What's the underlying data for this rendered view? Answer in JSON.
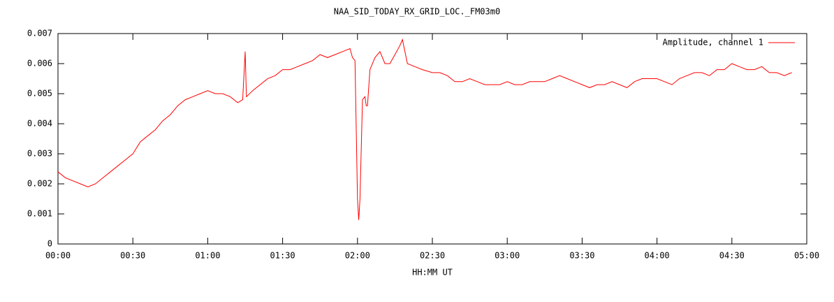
{
  "chart_data": {
    "type": "line",
    "title": "NAA_SID_TODAY_RX_GRID_LOC._FM03m0",
    "xlabel": "HH:MM UT",
    "x": [
      0,
      3,
      6,
      9,
      12,
      15,
      18,
      21,
      24,
      27,
      30,
      33,
      36,
      39,
      42,
      45,
      48,
      51,
      54,
      57,
      60,
      63,
      66,
      69,
      72,
      74,
      75,
      75.5,
      78,
      81,
      84,
      87,
      90,
      93,
      96,
      99,
      102,
      105,
      108,
      111,
      114,
      117,
      118,
      119,
      120,
      120.5,
      121,
      122,
      123,
      123.5,
      124,
      125,
      127,
      129,
      131,
      133,
      135,
      137,
      138,
      140,
      143,
      146,
      150,
      153,
      156,
      159,
      162,
      165,
      168,
      171,
      174,
      177,
      180,
      183,
      186,
      189,
      192,
      195,
      198,
      201,
      204,
      207,
      210,
      213,
      216,
      219,
      222,
      225,
      228,
      231,
      234,
      237,
      240,
      243,
      246,
      249,
      252,
      255,
      258,
      261,
      264,
      267,
      270,
      273,
      276,
      279,
      282,
      285,
      288,
      291,
      294
    ],
    "series": [
      {
        "name": "Amplitude, channel 1",
        "color": "#ff0000",
        "values": [
          0.0024,
          0.0022,
          0.0021,
          0.002,
          0.0019,
          0.002,
          0.0022,
          0.0024,
          0.0026,
          0.0028,
          0.003,
          0.0034,
          0.0036,
          0.0038,
          0.0041,
          0.0043,
          0.0046,
          0.0048,
          0.0049,
          0.005,
          0.0051,
          0.005,
          0.005,
          0.0049,
          0.0047,
          0.0048,
          0.0064,
          0.0049,
          0.0051,
          0.0053,
          0.0055,
          0.0056,
          0.0058,
          0.0058,
          0.0059,
          0.006,
          0.0061,
          0.0063,
          0.0062,
          0.0063,
          0.0064,
          0.0065,
          0.0062,
          0.0061,
          0.0015,
          0.0008,
          0.0015,
          0.0048,
          0.0049,
          0.0046,
          0.0046,
          0.0058,
          0.0062,
          0.0064,
          0.006,
          0.006,
          0.0063,
          0.0066,
          0.0068,
          0.006,
          0.0059,
          0.0058,
          0.0057,
          0.0057,
          0.0056,
          0.0054,
          0.0054,
          0.0055,
          0.0054,
          0.0053,
          0.0053,
          0.0053,
          0.0054,
          0.0053,
          0.0053,
          0.0054,
          0.0054,
          0.0054,
          0.0055,
          0.0056,
          0.0055,
          0.0054,
          0.0053,
          0.0052,
          0.0053,
          0.0053,
          0.0054,
          0.0053,
          0.0052,
          0.0054,
          0.0055,
          0.0055,
          0.0055,
          0.0054,
          0.0053,
          0.0055,
          0.0056,
          0.0057,
          0.0057,
          0.0056,
          0.0058,
          0.0058,
          0.006,
          0.0059,
          0.0058,
          0.0058,
          0.0059,
          0.0057,
          0.0057,
          0.0056,
          0.0057
        ]
      }
    ],
    "xlim": [
      0,
      300
    ],
    "xticks": [
      {
        "value": 0,
        "label": "00:00"
      },
      {
        "value": 30,
        "label": "00:30"
      },
      {
        "value": 60,
        "label": "01:00"
      },
      {
        "value": 90,
        "label": "01:30"
      },
      {
        "value": 120,
        "label": "02:00"
      },
      {
        "value": 150,
        "label": "02:30"
      },
      {
        "value": 180,
        "label": "03:00"
      },
      {
        "value": 210,
        "label": "03:30"
      },
      {
        "value": 240,
        "label": "04:00"
      },
      {
        "value": 270,
        "label": "04:30"
      },
      {
        "value": 300,
        "label": "05:00"
      }
    ],
    "ylim": [
      0,
      0.007
    ],
    "yticks": [
      0,
      0.001,
      0.002,
      0.003,
      0.004,
      0.005,
      0.006,
      0.007
    ],
    "legend": "top right"
  }
}
